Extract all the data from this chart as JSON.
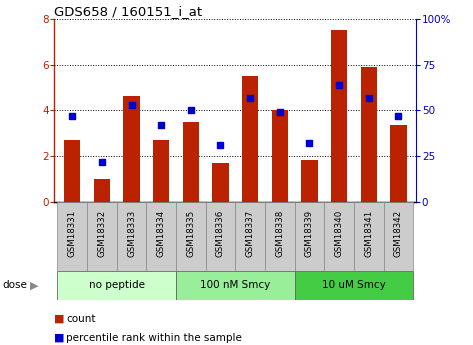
{
  "title": "GDS658 / 160151_i_at",
  "samples": [
    "GSM18331",
    "GSM18332",
    "GSM18333",
    "GSM18334",
    "GSM18335",
    "GSM18336",
    "GSM18337",
    "GSM18338",
    "GSM18339",
    "GSM18340",
    "GSM18341",
    "GSM18342"
  ],
  "counts": [
    2.7,
    1.0,
    4.65,
    2.7,
    3.5,
    1.7,
    5.5,
    4.0,
    1.85,
    7.5,
    5.9,
    3.35
  ],
  "percentiles": [
    47,
    22,
    53,
    42,
    50,
    31,
    57,
    49,
    32,
    64,
    57,
    47
  ],
  "bar_color": "#bb2200",
  "dot_color": "#0000cc",
  "ylim_left": [
    0,
    8
  ],
  "ylim_right": [
    0,
    100
  ],
  "yticks_left": [
    0,
    2,
    4,
    6,
    8
  ],
  "yticks_right": [
    0,
    25,
    50,
    75,
    100
  ],
  "ytick_labels_right": [
    "0",
    "25",
    "50",
    "75",
    "100%"
  ],
  "groups": [
    {
      "label": "no peptide",
      "start": 0,
      "end": 3,
      "color": "#ccffcc"
    },
    {
      "label": "100 nM Smcy",
      "start": 4,
      "end": 7,
      "color": "#99ee99"
    },
    {
      "label": "10 uM Smcy",
      "start": 8,
      "end": 11,
      "color": "#44cc44"
    }
  ],
  "dose_label": "dose",
  "legend_count": "count",
  "legend_percentile": "percentile rank within the sample",
  "tick_label_bg": "#cccccc",
  "grid_color": "#000000",
  "bar_width": 0.55
}
